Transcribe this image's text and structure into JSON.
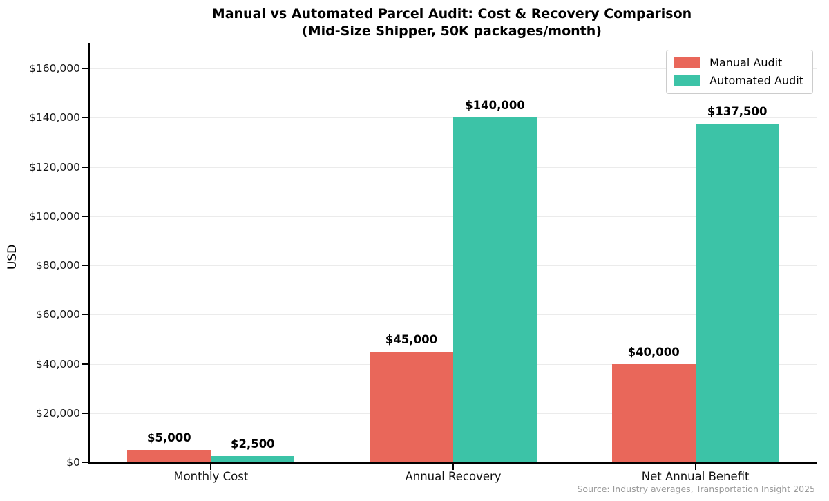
{
  "title": "Manual vs Automated Parcel Audit: Cost & Recovery Comparison",
  "subtitle": "(Mid-Size Shipper, 50K packages/month)",
  "source_note": "Source: Industry averages, Transportation Insight 2025",
  "colors": {
    "manual": "#e9675a",
    "automated": "#3cc3a7",
    "gridline": "#ebebeb",
    "axis": "#000000",
    "source_text": "#999999"
  },
  "chart_data": {
    "type": "bar",
    "title": "Manual vs Automated Parcel Audit: Cost & Recovery Comparison (Mid-Size Shipper, 50K packages/month)",
    "categories": [
      "Monthly Cost",
      "Annual Recovery",
      "Net Annual Benefit"
    ],
    "series": [
      {
        "name": "Manual Audit",
        "color": "#e9675a",
        "values": [
          5000,
          45000,
          40000
        ],
        "data_labels": [
          "$5,000",
          "$45,000",
          "$40,000"
        ]
      },
      {
        "name": "Automated Audit",
        "color": "#3cc3a7",
        "values": [
          2500,
          140000,
          137500
        ],
        "data_labels": [
          "$2,500",
          "$140,000",
          "$137,500"
        ]
      }
    ],
    "xlabel": "",
    "ylabel": "USD",
    "ylim": [
      0,
      170400
    ],
    "yticks": [
      0,
      20000,
      40000,
      60000,
      80000,
      100000,
      120000,
      140000,
      160000
    ],
    "ytick_labels": [
      "$0",
      "$20,000",
      "$40,000",
      "$60,000",
      "$80,000",
      "$100,000",
      "$120,000",
      "$140,000",
      "$160,000"
    ],
    "grid": true,
    "legend_position": "upper right"
  }
}
